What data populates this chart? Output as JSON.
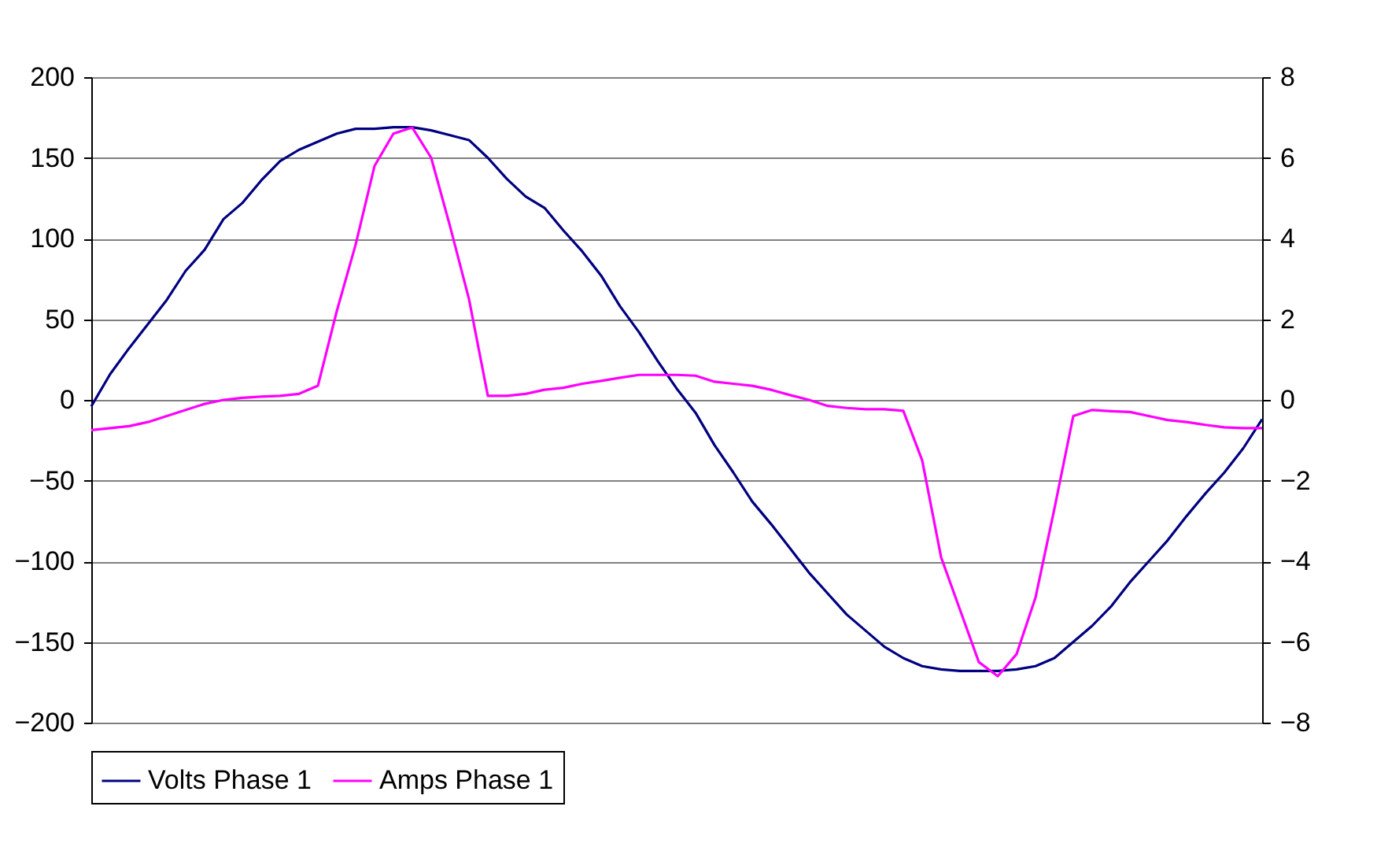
{
  "chart_data": {
    "type": "line",
    "categories": [
      null,
      null,
      null,
      null,
      null,
      null,
      null,
      null,
      null,
      null,
      null,
      null,
      null,
      null,
      null,
      null,
      null,
      null,
      null,
      null,
      null,
      null,
      null,
      null,
      null,
      null,
      null,
      null,
      null,
      null,
      null,
      null,
      null,
      null,
      null,
      null,
      null,
      null,
      null,
      null,
      null,
      null,
      null,
      null,
      null,
      null,
      null,
      null,
      null,
      null,
      null,
      null,
      null,
      null,
      null,
      null,
      null,
      null,
      null,
      null,
      null,
      null,
      null
    ],
    "series": [
      {
        "name": "Volts Phase 1",
        "color": "#000080",
        "values": [
          -4,
          16,
          32,
          47,
          62,
          80,
          93,
          112,
          122,
          136,
          148,
          155,
          160,
          165,
          168,
          168,
          169,
          169,
          167,
          164,
          161,
          150,
          137,
          126,
          119,
          105,
          92,
          77,
          58,
          42,
          24,
          7,
          -8,
          -28,
          -45,
          -63,
          -77,
          -92,
          -107,
          -120,
          -133,
          -143,
          -153,
          -160,
          -165,
          -167,
          -168,
          -168,
          -168,
          -167,
          -165,
          -160,
          -150,
          -140,
          -128,
          -113,
          -100,
          -87,
          -72,
          -58,
          -45,
          -30,
          -12
        ]
      },
      {
        "name": "Amps Phase 1",
        "color": "#ff00ff",
        "axis": "y2",
        "values": [
          -0.75,
          -0.7,
          -0.65,
          -0.55,
          -0.4,
          -0.25,
          -0.1,
          0,
          0.05,
          0.08,
          0.1,
          0.15,
          0.35,
          2.2,
          3.85,
          5.8,
          6.6,
          6.75,
          6.0,
          4.3,
          2.5,
          0.1,
          0.1,
          0.15,
          0.25,
          0.3,
          0.4,
          0.47,
          0.55,
          0.62,
          0.62,
          0.62,
          0.6,
          0.45,
          0.4,
          0.35,
          0.25,
          0.12,
          0.0,
          -0.15,
          -0.2,
          -0.23,
          -0.23,
          -0.27,
          -1.5,
          -3.9,
          -5.2,
          -6.5,
          -6.85,
          -6.3,
          -4.9,
          -2.7,
          -0.4,
          -0.25,
          -0.28,
          -0.3,
          -0.4,
          -0.5,
          -0.55,
          -0.62,
          -0.68,
          -0.7,
          -0.7
        ]
      }
    ],
    "ylim": [
      -200,
      200
    ],
    "yticks": [
      -200,
      -150,
      -100,
      -50,
      0,
      50,
      100,
      150,
      200
    ],
    "y2lim": [
      -8,
      8
    ],
    "y2ticks": [
      -8,
      -6,
      -4,
      -2,
      0,
      2,
      4,
      6,
      8
    ],
    "grid": "y",
    "legend": "bottom",
    "tick_labels": "y",
    "marker": "none",
    "line_style": "solid"
  }
}
